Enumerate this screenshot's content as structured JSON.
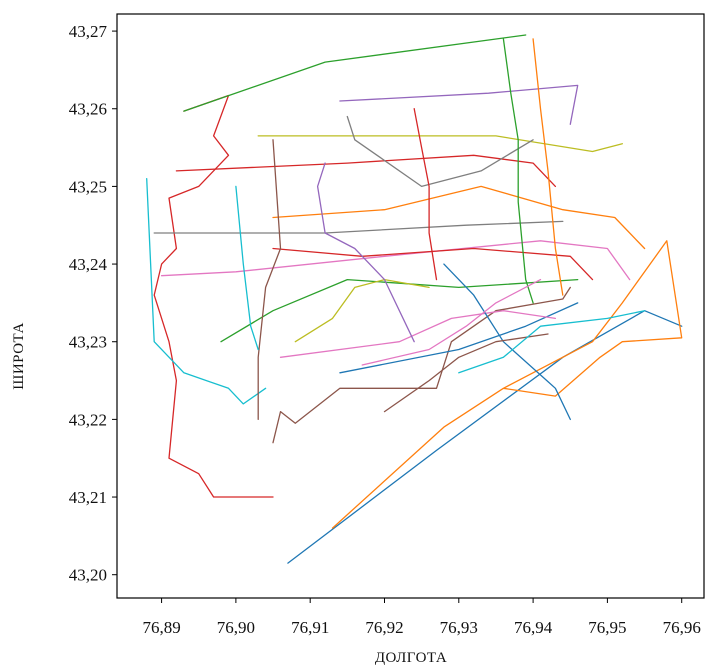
{
  "chart_data": {
    "type": "line",
    "title": "",
    "xlabel": "ДОЛГОТА",
    "ylabel": "ШИРОТА",
    "xlim": [
      76.884,
      76.963
    ],
    "ylim": [
      43.197,
      43.2722
    ],
    "x_ticks": [
      76.89,
      76.9,
      76.91,
      76.92,
      76.93,
      76.94,
      76.95,
      76.96
    ],
    "x_tick_labels": [
      "76,89",
      "76,90",
      "76,91",
      "76,92",
      "76,93",
      "76,94",
      "76,95",
      "76,96"
    ],
    "y_ticks": [
      43.2,
      43.21,
      43.22,
      43.23,
      43.24,
      43.25,
      43.26,
      43.27
    ],
    "y_tick_labels": [
      "43,20",
      "43,21",
      "43,22",
      "43,23",
      "43,24",
      "43,25",
      "43,26",
      "43,27"
    ],
    "grid": false,
    "legend": "none",
    "series": [
      {
        "color": "#d62728",
        "points": [
          [
            76.893,
            43.2597
          ],
          [
            76.899,
            43.2617
          ],
          [
            76.897,
            43.2565
          ],
          [
            76.899,
            43.254
          ],
          [
            76.895,
            43.25
          ],
          [
            76.891,
            43.2485
          ],
          [
            76.892,
            43.242
          ],
          [
            76.89,
            43.24
          ],
          [
            76.889,
            43.236
          ],
          [
            76.891,
            43.23
          ],
          [
            76.892,
            43.225
          ],
          [
            76.891,
            43.215
          ],
          [
            76.895,
            43.213
          ],
          [
            76.897,
            43.21
          ],
          [
            76.905,
            43.21
          ]
        ]
      },
      {
        "color": "#2ca02c",
        "points": [
          [
            76.893,
            43.2597
          ],
          [
            76.912,
            43.266
          ],
          [
            76.939,
            43.2695
          ]
        ]
      },
      {
        "color": "#1f77b4",
        "points": [
          [
            76.907,
            43.2015
          ],
          [
            76.927,
            43.216
          ],
          [
            76.944,
            43.228
          ],
          [
            76.955,
            43.234
          ],
          [
            76.96,
            43.232
          ]
        ]
      },
      {
        "color": "#ff7f0e",
        "points": [
          [
            76.913,
            43.206
          ],
          [
            76.928,
            43.219
          ],
          [
            76.936,
            43.224
          ],
          [
            76.948,
            43.23
          ],
          [
            76.952,
            43.235
          ],
          [
            76.958,
            43.243
          ],
          [
            76.96,
            43.2305
          ],
          [
            76.952,
            43.23
          ],
          [
            76.949,
            43.228
          ],
          [
            76.943,
            43.223
          ],
          [
            76.936,
            43.224
          ]
        ]
      },
      {
        "color": "#8c564b",
        "points": [
          [
            76.905,
            43.217
          ],
          [
            76.906,
            43.221
          ],
          [
            76.908,
            43.2195
          ],
          [
            76.914,
            43.224
          ],
          [
            76.927,
            43.224
          ],
          [
            76.929,
            43.23
          ],
          [
            76.935,
            43.234
          ],
          [
            76.941,
            43.235
          ],
          [
            76.944,
            43.2355
          ],
          [
            76.945,
            43.237
          ]
        ]
      },
      {
        "color": "#e377c2",
        "points": [
          [
            76.89,
            43.2385
          ],
          [
            76.9,
            43.239
          ],
          [
            76.92,
            43.241
          ],
          [
            76.941,
            43.243
          ],
          [
            76.95,
            43.242
          ],
          [
            76.953,
            43.238
          ]
        ]
      },
      {
        "color": "#7f7f7f",
        "points": [
          [
            76.889,
            43.244
          ],
          [
            76.912,
            43.244
          ],
          [
            76.931,
            43.245
          ],
          [
            76.944,
            43.2455
          ]
        ]
      },
      {
        "color": "#bcbd22",
        "points": [
          [
            76.903,
            43.2565
          ],
          [
            76.935,
            43.2565
          ],
          [
            76.948,
            43.2545
          ],
          [
            76.952,
            43.2555
          ]
        ]
      },
      {
        "color": "#17becf",
        "points": [
          [
            76.888,
            43.251
          ],
          [
            76.889,
            43.23
          ],
          [
            76.893,
            43.226
          ],
          [
            76.899,
            43.224
          ],
          [
            76.901,
            43.222
          ],
          [
            76.904,
            43.224
          ]
        ]
      },
      {
        "color": "#9467bd",
        "points": [
          [
            76.914,
            43.261
          ],
          [
            76.934,
            43.262
          ],
          [
            76.946,
            43.263
          ],
          [
            76.945,
            43.258
          ]
        ]
      },
      {
        "color": "#d62728",
        "points": [
          [
            76.892,
            43.252
          ],
          [
            76.915,
            43.253
          ],
          [
            76.932,
            43.254
          ],
          [
            76.94,
            43.253
          ],
          [
            76.943,
            43.25
          ]
        ]
      },
      {
        "color": "#ff7f0e",
        "points": [
          [
            76.905,
            43.246
          ],
          [
            76.92,
            43.247
          ],
          [
            76.933,
            43.25
          ],
          [
            76.944,
            43.247
          ],
          [
            76.951,
            43.246
          ],
          [
            76.955,
            43.242
          ]
        ]
      },
      {
        "color": "#1f77b4",
        "points": [
          [
            76.914,
            43.226
          ],
          [
            76.93,
            43.229
          ],
          [
            76.939,
            43.232
          ],
          [
            76.946,
            43.235
          ]
        ]
      },
      {
        "color": "#2ca02c",
        "points": [
          [
            76.898,
            43.23
          ],
          [
            76.905,
            43.234
          ],
          [
            76.915,
            43.238
          ],
          [
            76.93,
            43.237
          ],
          [
            76.946,
            43.238
          ]
        ]
      },
      {
        "color": "#d62728",
        "points": [
          [
            76.905,
            43.242
          ],
          [
            76.917,
            43.241
          ],
          [
            76.932,
            43.242
          ],
          [
            76.945,
            43.241
          ],
          [
            76.948,
            43.238
          ]
        ]
      },
      {
        "color": "#e377c2",
        "points": [
          [
            76.906,
            43.228
          ],
          [
            76.922,
            43.23
          ],
          [
            76.929,
            43.233
          ],
          [
            76.936,
            43.234
          ],
          [
            76.943,
            43.233
          ]
        ]
      },
      {
        "color": "#8c564b",
        "points": [
          [
            76.903,
            43.22
          ],
          [
            76.903,
            43.228
          ],
          [
            76.904,
            43.237
          ],
          [
            76.906,
            43.242
          ],
          [
            76.905,
            43.256
          ]
        ]
      },
      {
        "color": "#17becf",
        "points": [
          [
            76.9,
            43.25
          ],
          [
            76.901,
            43.24
          ],
          [
            76.902,
            43.232
          ],
          [
            76.903,
            43.229
          ]
        ]
      },
      {
        "color": "#bcbd22",
        "points": [
          [
            76.908,
            43.23
          ],
          [
            76.913,
            43.233
          ],
          [
            76.916,
            43.237
          ],
          [
            76.92,
            43.238
          ],
          [
            76.926,
            43.237
          ]
        ]
      },
      {
        "color": "#9467bd",
        "points": [
          [
            76.912,
            43.253
          ],
          [
            76.911,
            43.25
          ],
          [
            76.912,
            43.244
          ],
          [
            76.916,
            43.242
          ],
          [
            76.92,
            43.238
          ],
          [
            76.924,
            43.23
          ]
        ]
      },
      {
        "color": "#7f7f7f",
        "points": [
          [
            76.915,
            43.259
          ],
          [
            76.916,
            43.256
          ],
          [
            76.919,
            43.254
          ],
          [
            76.925,
            43.25
          ],
          [
            76.933,
            43.252
          ],
          [
            76.94,
            43.256
          ]
        ]
      },
      {
        "color": "#d62728",
        "points": [
          [
            76.924,
            43.26
          ],
          [
            76.925,
            43.255
          ],
          [
            76.926,
            43.25
          ],
          [
            76.926,
            43.244
          ],
          [
            76.927,
            43.238
          ]
        ]
      },
      {
        "color": "#2ca02c",
        "points": [
          [
            76.936,
            43.269
          ],
          [
            76.937,
            43.262
          ],
          [
            76.938,
            43.256
          ],
          [
            76.938,
            43.248
          ],
          [
            76.939,
            43.238
          ],
          [
            76.94,
            43.235
          ]
        ]
      },
      {
        "color": "#ff7f0e",
        "points": [
          [
            76.94,
            43.269
          ],
          [
            76.941,
            43.26
          ],
          [
            76.942,
            43.252
          ],
          [
            76.943,
            43.242
          ],
          [
            76.944,
            43.236
          ]
        ]
      },
      {
        "color": "#1f77b4",
        "points": [
          [
            76.928,
            43.24
          ],
          [
            76.932,
            43.236
          ],
          [
            76.936,
            43.23
          ],
          [
            76.943,
            43.224
          ],
          [
            76.945,
            43.22
          ]
        ]
      },
      {
        "color": "#e377c2",
        "points": [
          [
            76.917,
            43.227
          ],
          [
            76.926,
            43.229
          ],
          [
            76.931,
            43.232
          ],
          [
            76.935,
            43.235
          ],
          [
            76.941,
            43.238
          ]
        ]
      },
      {
        "color": "#8c564b",
        "points": [
          [
            76.92,
            43.221
          ],
          [
            76.926,
            43.225
          ],
          [
            76.93,
            43.228
          ],
          [
            76.935,
            43.23
          ],
          [
            76.942,
            43.231
          ]
        ]
      },
      {
        "color": "#17becf",
        "points": [
          [
            76.93,
            43.226
          ],
          [
            76.936,
            43.228
          ],
          [
            76.941,
            43.232
          ],
          [
            76.95,
            43.233
          ],
          [
            76.955,
            43.234
          ]
        ]
      }
    ]
  }
}
